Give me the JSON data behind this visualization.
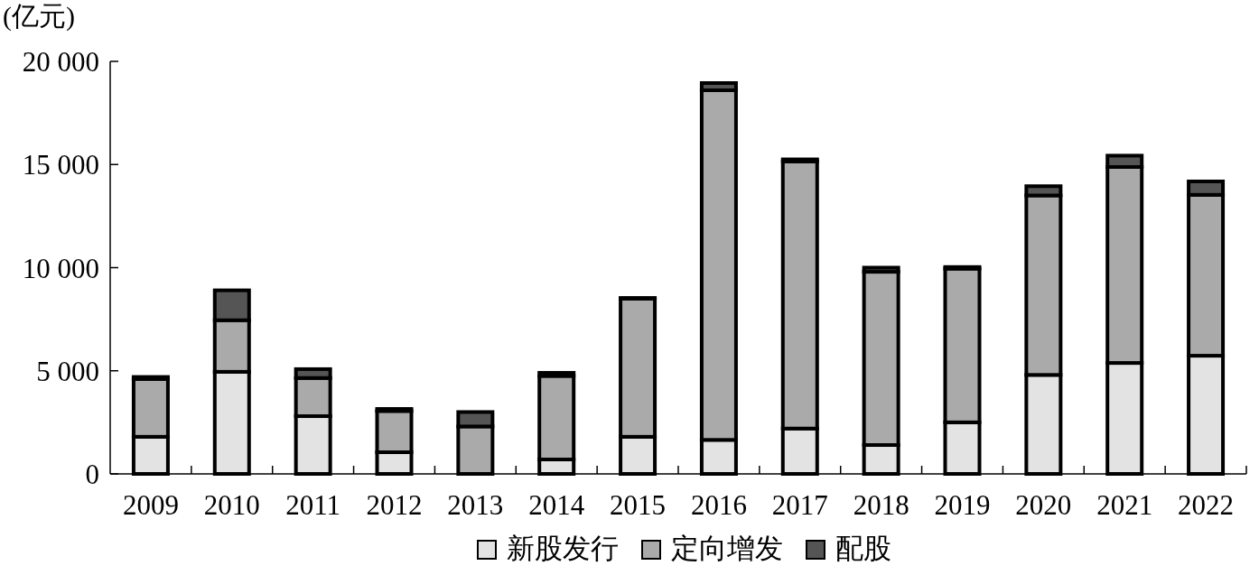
{
  "chart_data": {
    "type": "bar",
    "stacked": true,
    "ylabel": "(亿元)",
    "categories": [
      "2009",
      "2010",
      "2011",
      "2012",
      "2013",
      "2014",
      "2015",
      "2016",
      "2017",
      "2018",
      "2019",
      "2020",
      "2021",
      "2022"
    ],
    "series": [
      {
        "name": "新股发行",
        "color": "#e3e3e3",
        "values": [
          1800,
          4950,
          2800,
          1050,
          0,
          700,
          1800,
          1650,
          2200,
          1400,
          2500,
          4800,
          5380,
          5730
        ]
      },
      {
        "name": "定向增发",
        "color": "#aaaaaa",
        "values": [
          2800,
          2500,
          1850,
          2000,
          2300,
          4050,
          6700,
          16950,
          12950,
          8400,
          7450,
          8700,
          9500,
          7800
        ]
      },
      {
        "name": "配股",
        "color": "#555555",
        "values": [
          100,
          1450,
          430,
          100,
          700,
          150,
          30,
          350,
          100,
          200,
          80,
          450,
          550,
          650
        ]
      }
    ],
    "ylim": [
      0,
      20000
    ],
    "yticks": [
      0,
      {
        "value": 5000,
        "label": "5 000"
      },
      {
        "value": 10000,
        "label": "10 000"
      },
      {
        "value": 15000,
        "label": "15 000"
      },
      {
        "value": 20000,
        "label": "20 000"
      }
    ],
    "legend": "bottom",
    "grid": false
  }
}
